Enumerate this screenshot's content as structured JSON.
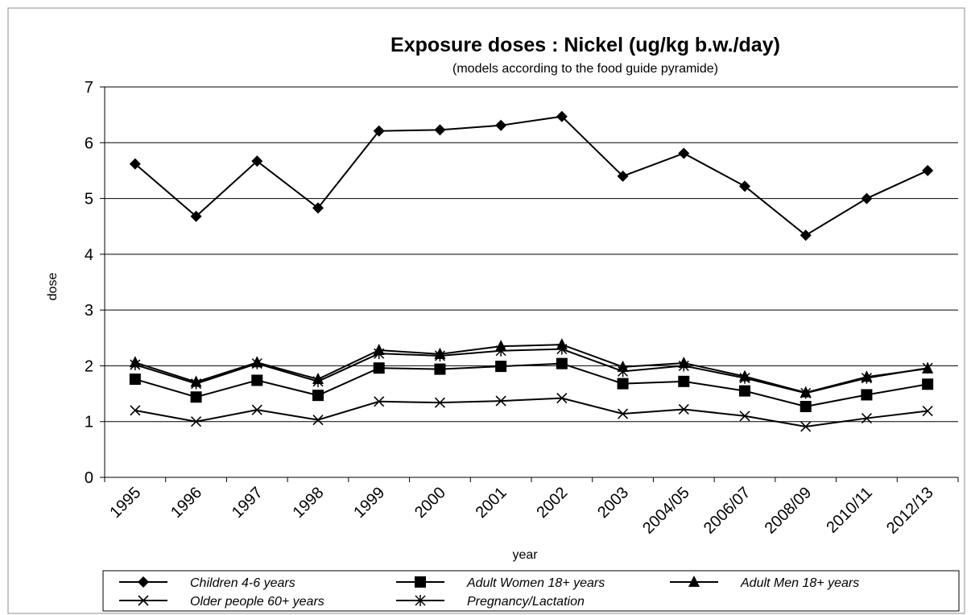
{
  "chart_data": {
    "type": "line",
    "title": "Exposure doses : Nickel (ug/kg b.w./day)",
    "subtitle": "(models according to the food guide pyramide)",
    "xlabel": "year",
    "ylabel": "dose",
    "ylim": [
      0,
      7
    ],
    "yticks": [
      "0",
      "1",
      "2",
      "3",
      "4",
      "5",
      "6",
      "7"
    ],
    "grid": "horizontal",
    "legend_position": "bottom",
    "categories": [
      "1995",
      "1996",
      "1997",
      "1998",
      "1999",
      "2000",
      "2001",
      "2002",
      "2003",
      "2004/05",
      "2006/07",
      "2008/09",
      "2010/11",
      "2012/13"
    ],
    "series": [
      {
        "name": "Children 4-6 years",
        "marker": "diamond",
        "color": "#000000",
        "values": [
          5.62,
          4.68,
          5.67,
          4.83,
          6.21,
          6.23,
          6.31,
          6.47,
          5.4,
          5.81,
          5.22,
          4.34,
          5.0,
          5.5
        ]
      },
      {
        "name": "Adult Women 18+ years",
        "marker": "square",
        "color": "#000000",
        "values": [
          1.76,
          1.44,
          1.74,
          1.47,
          1.96,
          1.94,
          1.99,
          2.04,
          1.68,
          1.72,
          1.55,
          1.27,
          1.48,
          1.67
        ]
      },
      {
        "name": "Adult Men 18+ years",
        "marker": "triangle",
        "color": "#000000",
        "values": [
          2.06,
          1.71,
          2.06,
          1.76,
          2.28,
          2.21,
          2.35,
          2.38,
          1.98,
          2.05,
          1.81,
          1.52,
          1.8,
          1.95
        ]
      },
      {
        "name": "Older people 60+ years",
        "marker": "x",
        "color": "#000000",
        "values": [
          1.2,
          1.0,
          1.21,
          1.03,
          1.36,
          1.34,
          1.37,
          1.42,
          1.14,
          1.22,
          1.1,
          0.91,
          1.06,
          1.19
        ]
      },
      {
        "name": "Pregnancy/Lactation",
        "marker": "star",
        "color": "#000000",
        "values": [
          2.02,
          1.68,
          2.04,
          1.72,
          2.22,
          2.18,
          2.27,
          2.3,
          1.9,
          2.0,
          1.78,
          1.51,
          1.78,
          1.96
        ]
      }
    ]
  }
}
